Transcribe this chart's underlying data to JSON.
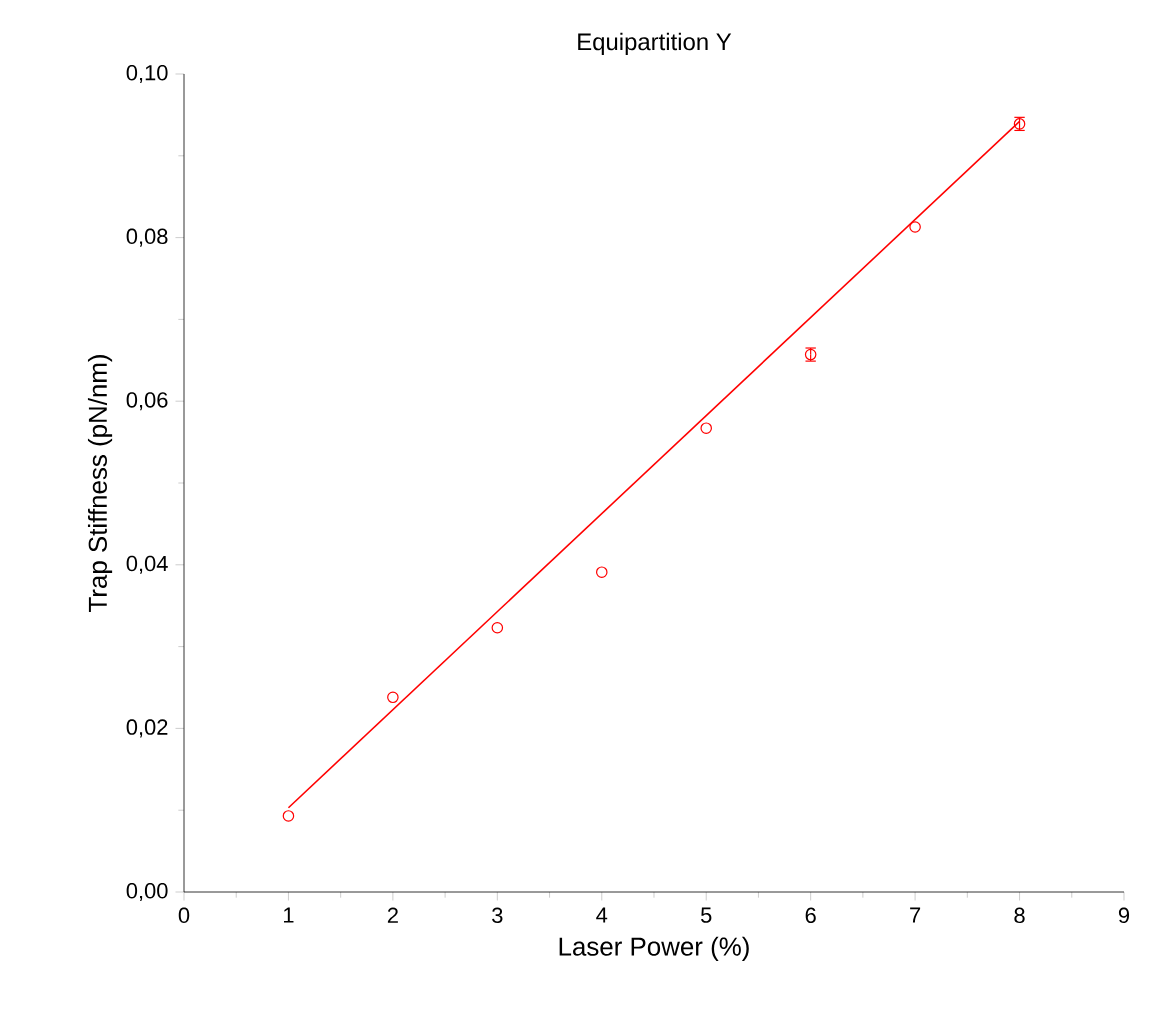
{
  "chart_data": {
    "type": "scatter",
    "title": "Equipartition Y",
    "xlabel": "Laser Power (%)",
    "ylabel": "Trap Stiffness (pN/nm)",
    "xlim": [
      0,
      9
    ],
    "xticks": [
      0,
      1,
      2,
      3,
      4,
      5,
      6,
      7,
      8,
      9
    ],
    "ylim": [
      0,
      0.1
    ],
    "yticks": [
      {
        "value": 0,
        "label": "0,00"
      },
      {
        "value": 0.02,
        "label": "0,02"
      },
      {
        "value": 0.04,
        "label": "0,04"
      },
      {
        "value": 0.06,
        "label": "0,06"
      },
      {
        "value": 0.08,
        "label": "0,08"
      },
      {
        "value": 0.1,
        "label": "0,10"
      }
    ],
    "grid": false,
    "marker": "circle",
    "series": [
      {
        "color": "#ff0000",
        "x": [
          1,
          2,
          3,
          4,
          5,
          6,
          7,
          8
        ],
        "values": [
          0.0093,
          0.0238,
          0.0323,
          0.0391,
          0.0567,
          0.0657,
          0.0813,
          0.0939
        ],
        "errors": [
          null,
          null,
          null,
          null,
          null,
          0.0008,
          null,
          0.0008
        ]
      },
      {
        "type": "line",
        "color": "#ff0000",
        "x": [
          1,
          8
        ],
        "values": [
          0.0103,
          0.0942
        ],
        "marker": "none",
        "line_style": "solid"
      }
    ]
  }
}
